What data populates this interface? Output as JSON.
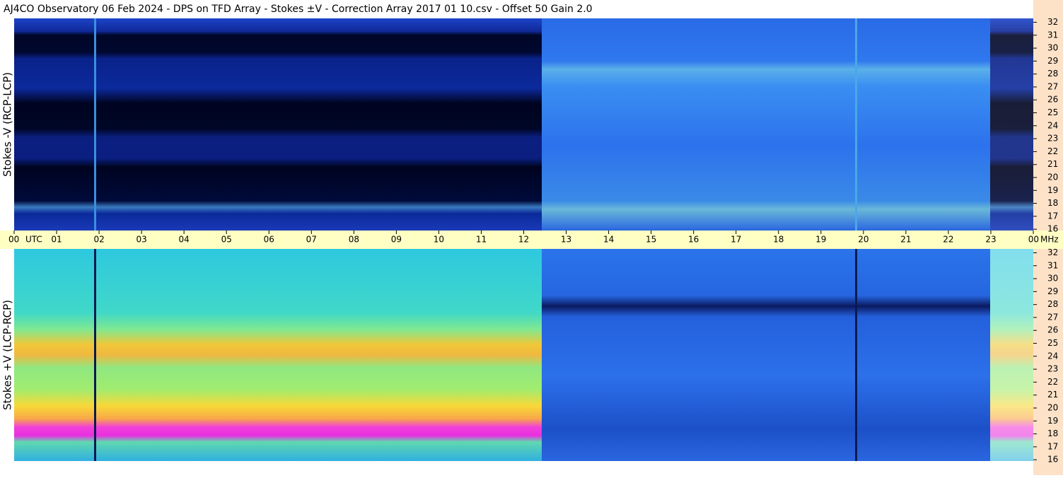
{
  "chart_data": {
    "type": "spectrogram",
    "title": "AJ4CO Observatory  06 Feb 2024  -  DPS on TFD Array  -  Stokes ±V  -  Correction Array 2017 01 10.csv  -  Offset 50  Gain 2.0",
    "x_unit": "UTC",
    "y_unit": "MHz",
    "xlim": [
      0,
      24
    ],
    "xticks": [
      {
        "value": 0,
        "label": "00"
      },
      {
        "value": 1,
        "label": "01"
      },
      {
        "value": 2,
        "label": "02"
      },
      {
        "value": 3,
        "label": "03"
      },
      {
        "value": 4,
        "label": "04"
      },
      {
        "value": 5,
        "label": "05"
      },
      {
        "value": 6,
        "label": "06"
      },
      {
        "value": 7,
        "label": "07"
      },
      {
        "value": 8,
        "label": "08"
      },
      {
        "value": 9,
        "label": "09"
      },
      10,
      11,
      12,
      13,
      14,
      15,
      16,
      17,
      18,
      19,
      20,
      21,
      22,
      23,
      {
        "value": 24,
        "label": "00"
      }
    ],
    "ylim": [
      15.9,
      32.3
    ],
    "yticks": [
      16,
      17,
      18,
      19,
      20,
      21,
      22,
      23,
      24,
      25,
      26,
      27,
      28,
      29,
      30,
      31,
      32
    ],
    "panels": [
      {
        "ylabel": "Stokes -V (RCP-LCP)"
      },
      {
        "ylabel": "Stokes +V (LCP-RCP)"
      }
    ]
  }
}
